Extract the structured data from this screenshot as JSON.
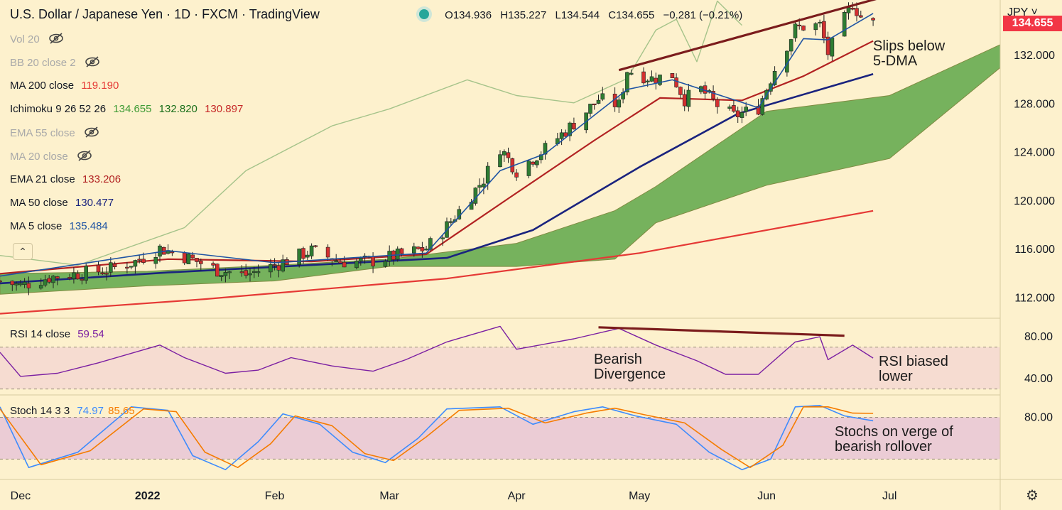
{
  "header": {
    "title": "U.S. Dollar / Japanese Yen · 1D · FXCM · TradingView",
    "ohlc": {
      "o_label": "O",
      "o": "134.936",
      "h_label": "H",
      "h": "135.227",
      "l_label": "L",
      "l": "134.544",
      "c_label": "C",
      "c": "134.655",
      "change": "−0.281",
      "change_pct": "(−0.21%)"
    }
  },
  "currency": "JPY ˅",
  "last_price": "134.655",
  "legend": {
    "vol": "Vol 20",
    "bb": "BB 20 close 2",
    "ma200": {
      "name": "MA 200 close",
      "value": "119.190"
    },
    "ichimoku": {
      "name": "Ichimoku 9 26 52 26",
      "v1": "134.655",
      "v2": "132.820",
      "v3": "130.897"
    },
    "ema55": "EMA 55 close",
    "ma20": "MA 20 close",
    "ema21": {
      "name": "EMA 21 close",
      "value": "133.206"
    },
    "ma50": {
      "name": "MA 50 close",
      "value": "130.477"
    },
    "ma5": {
      "name": "MA 5 close",
      "value": "135.484"
    },
    "rsi": {
      "name": "RSI 14 close",
      "value": "59.54"
    },
    "stoch": {
      "name": "Stoch 14 3 3",
      "k": "74.97",
      "d": "85.65"
    }
  },
  "annotations": {
    "slips": [
      "Slips below",
      "5-DMA"
    ],
    "bearish": [
      "Bearish",
      "Divergence"
    ],
    "rsi_biased": [
      "RSI biased",
      "lower"
    ],
    "stochs": [
      "Stochs on verge of",
      "bearish rollover"
    ]
  },
  "colors": {
    "background": "#fdf1cd",
    "up": "#2e7d32",
    "down": "#d32f2f",
    "ma5": "#1e53a3",
    "ema21": "#b22222",
    "ma50": "#1a237e",
    "ma200": "#e53935",
    "cloud": "#5fa84a",
    "lagging": "#a5c38a",
    "rsi": "#7b1fa2",
    "stoch_k": "#3d8bfd",
    "stoch_d": "#f57c00",
    "trendline": "#7b1c1c"
  },
  "chart_data": [
    {
      "type": "candlestick",
      "title": "U.S. Dollar / Japanese Yen · 1D · FXCM",
      "y_ticks": [
        "112.000",
        "116.000",
        "120.000",
        "124.000",
        "128.000",
        "132.000"
      ],
      "ylim": [
        110.5,
        136.0
      ],
      "x_ticks": [
        "Dec",
        "2022",
        "Feb",
        "Mar",
        "Apr",
        "May",
        "Jun",
        "Jul"
      ],
      "x_domain": [
        "2021-11-26",
        "2022-07-28"
      ],
      "close_path": [
        [
          "2021-11-26",
          113.4
        ],
        [
          "2021-12-01",
          113.0
        ],
        [
          "2021-12-08",
          113.7
        ],
        [
          "2021-12-15",
          114.0
        ],
        [
          "2021-12-22",
          114.3
        ],
        [
          "2021-12-29",
          115.0
        ],
        [
          "2022-01-04",
          116.1
        ],
        [
          "2022-01-11",
          115.3
        ],
        [
          "2022-01-18",
          114.3
        ],
        [
          "2022-01-25",
          113.9
        ],
        [
          "2022-02-01",
          114.7
        ],
        [
          "2022-02-10",
          115.9
        ],
        [
          "2022-02-17",
          115.0
        ],
        [
          "2022-02-24",
          115.0
        ],
        [
          "2022-03-03",
          115.5
        ],
        [
          "2022-03-10",
          116.1
        ],
        [
          "2022-03-14",
          117.5
        ],
        [
          "2022-03-18",
          119.2
        ],
        [
          "2022-03-24",
          121.8
        ],
        [
          "2022-03-28",
          124.4
        ],
        [
          "2022-04-01",
          122.5
        ],
        [
          "2022-04-08",
          124.3
        ],
        [
          "2022-04-15",
          126.4
        ],
        [
          "2022-04-21",
          128.4
        ],
        [
          "2022-04-26",
          127.9
        ],
        [
          "2022-04-28",
          130.8
        ],
        [
          "2022-05-04",
          130.1
        ],
        [
          "2022-05-09",
          130.4
        ],
        [
          "2022-05-12",
          128.4
        ],
        [
          "2022-05-16",
          129.2
        ],
        [
          "2022-05-20",
          127.9
        ],
        [
          "2022-05-24",
          127.0
        ],
        [
          "2022-05-30",
          127.7
        ],
        [
          "2022-06-03",
          130.9
        ],
        [
          "2022-06-08",
          134.2
        ],
        [
          "2022-06-10",
          134.4
        ],
        [
          "2022-06-14",
          134.5
        ],
        [
          "2022-06-16",
          132.2
        ],
        [
          "2022-06-20",
          135.0
        ],
        [
          "2022-06-22",
          136.3
        ],
        [
          "2022-06-24",
          135.2
        ],
        [
          "2022-06-27",
          134.65
        ]
      ],
      "ma5": [
        [
          "2021-11-26",
          113.8
        ],
        [
          "2022-01-06",
          115.9
        ],
        [
          "2022-02-01",
          114.9
        ],
        [
          "2022-03-10",
          115.7
        ],
        [
          "2022-03-28",
          122.5
        ],
        [
          "2022-04-08",
          123.9
        ],
        [
          "2022-04-28",
          129.2
        ],
        [
          "2022-05-09",
          130.0
        ],
        [
          "2022-05-30",
          127.7
        ],
        [
          "2022-06-10",
          133.4
        ],
        [
          "2022-06-16",
          133.3
        ],
        [
          "2022-06-27",
          135.48
        ]
      ],
      "ema21": [
        [
          "2021-11-26",
          114.0
        ],
        [
          "2022-01-06",
          115.2
        ],
        [
          "2022-02-10",
          115.0
        ],
        [
          "2022-03-10",
          115.6
        ],
        [
          "2022-03-30",
          120.2
        ],
        [
          "2022-04-20",
          125.0
        ],
        [
          "2022-05-06",
          128.5
        ],
        [
          "2022-05-26",
          128.3
        ],
        [
          "2022-06-10",
          130.3
        ],
        [
          "2022-06-27",
          133.206
        ]
      ],
      "ma50": [
        [
          "2021-11-26",
          113.2
        ],
        [
          "2022-01-06",
          114.1
        ],
        [
          "2022-02-15",
          114.8
        ],
        [
          "2022-03-15",
          115.3
        ],
        [
          "2022-04-05",
          117.6
        ],
        [
          "2022-05-01",
          122.8
        ],
        [
          "2022-05-25",
          127.2
        ],
        [
          "2022-06-27",
          130.477
        ]
      ],
      "ma200": [
        [
          "2021-11-26",
          110.7
        ],
        [
          "2022-01-15",
          111.9
        ],
        [
          "2022-03-15",
          113.6
        ],
        [
          "2022-05-01",
          115.7
        ],
        [
          "2022-06-27",
          119.19
        ]
      ],
      "cloud_top": [
        [
          "2021-11-26",
          114.0
        ],
        [
          "2022-01-01",
          114.2
        ],
        [
          "2022-02-01",
          114.7
        ],
        [
          "2022-03-01",
          115.2
        ],
        [
          "2022-04-01",
          116.5
        ],
        [
          "2022-04-25",
          119.2
        ],
        [
          "2022-05-05",
          121.2
        ],
        [
          "2022-06-01",
          127.4
        ],
        [
          "2022-07-01",
          128.7
        ],
        [
          "2022-07-28",
          132.9
        ]
      ],
      "cloud_bottom": [
        [
          "2021-11-26",
          112.3
        ],
        [
          "2022-01-01",
          113.0
        ],
        [
          "2022-02-01",
          113.4
        ],
        [
          "2022-03-01",
          114.6
        ],
        [
          "2022-04-01",
          114.6
        ],
        [
          "2022-04-25",
          115.2
        ],
        [
          "2022-05-05",
          118.2
        ],
        [
          "2022-06-01",
          121.3
        ],
        [
          "2022-07-01",
          123.5
        ],
        [
          "2022-07-28",
          131.0
        ]
      ],
      "lagging_span": [
        [
          "2021-11-26",
          115.5
        ],
        [
          "2021-12-15",
          114.7
        ],
        [
          "2022-01-10",
          117.8
        ],
        [
          "2022-01-25",
          122.5
        ],
        [
          "2022-02-15",
          126.2
        ],
        [
          "2022-03-01",
          127.6
        ],
        [
          "2022-03-20",
          130.0
        ],
        [
          "2022-04-01",
          128.7
        ],
        [
          "2022-04-15",
          128.1
        ],
        [
          "2022-04-28",
          130.1
        ],
        [
          "2022-05-05",
          134.1
        ],
        [
          "2022-05-10",
          135.0
        ],
        [
          "2022-05-15",
          131.5
        ],
        [
          "2022-05-20",
          136.5
        ],
        [
          "2022-05-26",
          134.5
        ]
      ],
      "trendline": [
        [
          "2022-04-26",
          130.8
        ],
        [
          "2022-06-28",
          136.7
        ]
      ]
    },
    {
      "type": "line",
      "name": "RSI 14 close",
      "y_ticks": [
        "40.00",
        "80.00"
      ],
      "band": [
        30,
        70
      ],
      "ylim": [
        27,
        95
      ],
      "values": [
        [
          "2021-11-26",
          65
        ],
        [
          "2021-12-01",
          42
        ],
        [
          "2021-12-10",
          45
        ],
        [
          "2021-12-20",
          55
        ],
        [
          "2022-01-04",
          72
        ],
        [
          "2022-01-10",
          60
        ],
        [
          "2022-01-20",
          45
        ],
        [
          "2022-01-28",
          48
        ],
        [
          "2022-02-05",
          60
        ],
        [
          "2022-02-15",
          52
        ],
        [
          "2022-02-25",
          47
        ],
        [
          "2022-03-05",
          58
        ],
        [
          "2022-03-15",
          75
        ],
        [
          "2022-03-28",
          90
        ],
        [
          "2022-04-01",
          68
        ],
        [
          "2022-04-15",
          78
        ],
        [
          "2022-04-26",
          88
        ],
        [
          "2022-05-05",
          72
        ],
        [
          "2022-05-15",
          57
        ],
        [
          "2022-05-22",
          44
        ],
        [
          "2022-05-30",
          44
        ],
        [
          "2022-06-08",
          75
        ],
        [
          "2022-06-14",
          80
        ],
        [
          "2022-06-16",
          58
        ],
        [
          "2022-06-22",
          72
        ],
        [
          "2022-06-27",
          59.54
        ]
      ],
      "divergence_line": [
        [
          "2022-04-21",
          89
        ],
        [
          "2022-06-20",
          81
        ]
      ]
    },
    {
      "type": "line",
      "name": "Stoch 14 3 3",
      "y_ticks": [
        "80.00"
      ],
      "band": [
        20,
        80
      ],
      "ylim": [
        -4,
        108
      ],
      "k": [
        [
          "2021-11-26",
          95
        ],
        [
          "2021-12-03",
          8
        ],
        [
          "2021-12-15",
          30
        ],
        [
          "2021-12-28",
          95
        ],
        [
          "2022-01-06",
          90
        ],
        [
          "2022-01-12",
          25
        ],
        [
          "2022-01-20",
          5
        ],
        [
          "2022-01-28",
          45
        ],
        [
          "2022-02-03",
          85
        ],
        [
          "2022-02-12",
          70
        ],
        [
          "2022-02-20",
          30
        ],
        [
          "2022-02-28",
          15
        ],
        [
          "2022-03-08",
          50
        ],
        [
          "2022-03-15",
          92
        ],
        [
          "2022-03-28",
          95
        ],
        [
          "2022-04-05",
          70
        ],
        [
          "2022-04-15",
          88
        ],
        [
          "2022-04-22",
          95
        ],
        [
          "2022-04-30",
          82
        ],
        [
          "2022-05-10",
          70
        ],
        [
          "2022-05-18",
          30
        ],
        [
          "2022-05-26",
          5
        ],
        [
          "2022-06-02",
          20
        ],
        [
          "2022-06-08",
          95
        ],
        [
          "2022-06-14",
          97
        ],
        [
          "2022-06-20",
          82
        ],
        [
          "2022-06-27",
          74.97
        ]
      ],
      "d": [
        [
          "2021-11-26",
          92
        ],
        [
          "2021-12-06",
          12
        ],
        [
          "2021-12-18",
          32
        ],
        [
          "2021-12-31",
          92
        ],
        [
          "2022-01-08",
          88
        ],
        [
          "2022-01-15",
          30
        ],
        [
          "2022-01-23",
          8
        ],
        [
          "2022-01-31",
          42
        ],
        [
          "2022-02-06",
          82
        ],
        [
          "2022-02-15",
          68
        ],
        [
          "2022-02-23",
          28
        ],
        [
          "2022-03-02",
          18
        ],
        [
          "2022-03-10",
          52
        ],
        [
          "2022-03-18",
          90
        ],
        [
          "2022-03-30",
          93
        ],
        [
          "2022-04-08",
          72
        ],
        [
          "2022-04-18",
          86
        ],
        [
          "2022-04-25",
          93
        ],
        [
          "2022-05-02",
          84
        ],
        [
          "2022-05-12",
          72
        ],
        [
          "2022-05-21",
          34
        ],
        [
          "2022-05-28",
          8
        ],
        [
          "2022-06-05",
          40
        ],
        [
          "2022-06-10",
          95
        ],
        [
          "2022-06-16",
          95
        ],
        [
          "2022-06-22",
          86
        ],
        [
          "2022-06-27",
          85.65
        ]
      ]
    }
  ]
}
